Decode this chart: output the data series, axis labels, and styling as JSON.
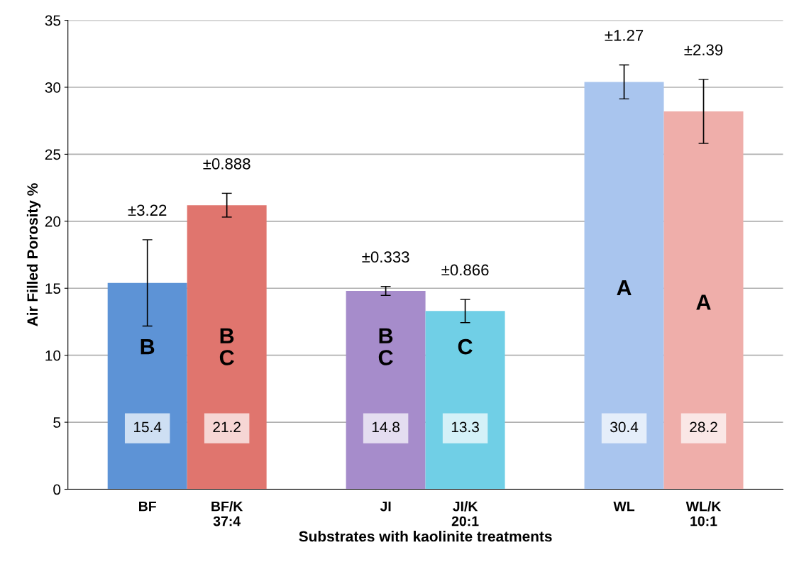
{
  "chart_data": {
    "type": "bar",
    "xlabel": "Substrates with kaolinite treatments",
    "ylabel": "Air Filled Porosity %",
    "categories": [
      "BF",
      "BF/K\n37:4",
      null,
      "JI",
      "JI/K\n20:1",
      null,
      "WL",
      "WL/K\n10:1"
    ],
    "values": [
      15.4,
      21.2,
      null,
      14.8,
      13.3,
      null,
      30.4,
      28.2
    ],
    "errors": [
      3.22,
      0.888,
      null,
      0.333,
      0.866,
      null,
      1.27,
      2.39
    ],
    "colors": [
      "#5d93d6",
      "#e0756e",
      null,
      "#a68ccb",
      "#70cfe6",
      null,
      "#a9c5ee",
      "#efaeaa"
    ],
    "data_labels": true,
    "ylim": [
      0,
      35
    ],
    "yticks": [
      0,
      5,
      10,
      15,
      20,
      25,
      30,
      35
    ],
    "grid": "y",
    "annotations": [
      "±3.22",
      "±0.888",
      "±0.333",
      "±0.866",
      "±1.27",
      "±2.39",
      "B",
      "B\nC",
      "B\nC",
      "C",
      "A",
      "A"
    ]
  }
}
